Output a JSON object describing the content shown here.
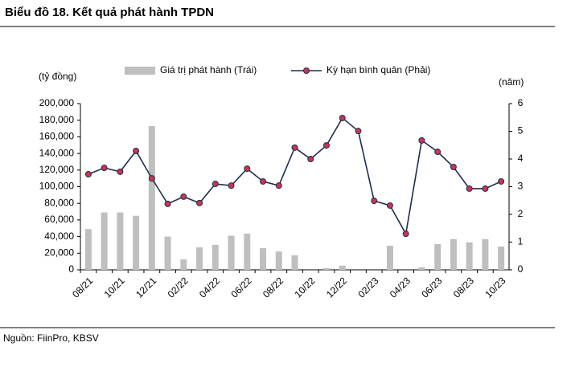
{
  "chart_data": {
    "type": "combo",
    "title": "Biểu đồ 18. Kết quả phát hành TPDN",
    "source": "Nguồn: FiinPro, KBSV",
    "y_label": "(tỷ đồng)",
    "y2_label": "(năm)",
    "categories": [
      "08/21",
      null,
      "10/21",
      null,
      "12/21",
      null,
      "02/22",
      null,
      "04/22",
      null,
      "06/22",
      null,
      "08/22",
      null,
      "10/22",
      null,
      "12/22",
      null,
      "02/23",
      null,
      "04/23",
      null,
      "06/23",
      null,
      "08/23",
      null,
      "10/23"
    ],
    "series": [
      {
        "name": "Giá trị phát hành (Trái)",
        "type": "bar",
        "color": "#bfbfbf",
        "values": [
          49000,
          69000,
          69000,
          65000,
          173000,
          40000,
          12500,
          27000,
          30000,
          41000,
          43500,
          26000,
          22000,
          17500,
          0,
          2000,
          5000,
          0,
          0,
          29000,
          0,
          3000,
          31000,
          37000,
          33000,
          37000,
          28000
        ]
      },
      {
        "name": "Kỳ hạn bình quân (Phải)",
        "type": "line",
        "axis": "y2",
        "color": "#1f2d4e",
        "marker_color": "#c9344f",
        "values": [
          3.45,
          3.68,
          3.54,
          4.29,
          3.3,
          2.38,
          2.64,
          2.41,
          3.1,
          3.04,
          3.65,
          3.19,
          3.04,
          4.41,
          4.0,
          4.49,
          5.48,
          5.01,
          2.49,
          2.32,
          1.3,
          4.67,
          4.26,
          3.71,
          2.93,
          2.93,
          3.19
        ]
      }
    ],
    "ylim": [
      0,
      200000
    ],
    "yticks": [
      0,
      {
        "value": 20000,
        "label": "20,000"
      },
      {
        "value": 40000,
        "label": "40,000"
      },
      {
        "value": 60000,
        "label": "60,000"
      },
      {
        "value": 80000,
        "label": "80,000"
      },
      {
        "value": 100000,
        "label": "100,000"
      },
      {
        "value": 120000,
        "label": "120,000"
      },
      {
        "value": 140000,
        "label": "140,000"
      },
      {
        "value": 160000,
        "label": "160,000"
      },
      {
        "value": 180000,
        "label": "180,000"
      },
      {
        "value": 200000,
        "label": "200,000"
      }
    ],
    "y2lim": [
      0,
      6
    ],
    "y2ticks": [
      0,
      1,
      2,
      3,
      4,
      5,
      6
    ]
  }
}
